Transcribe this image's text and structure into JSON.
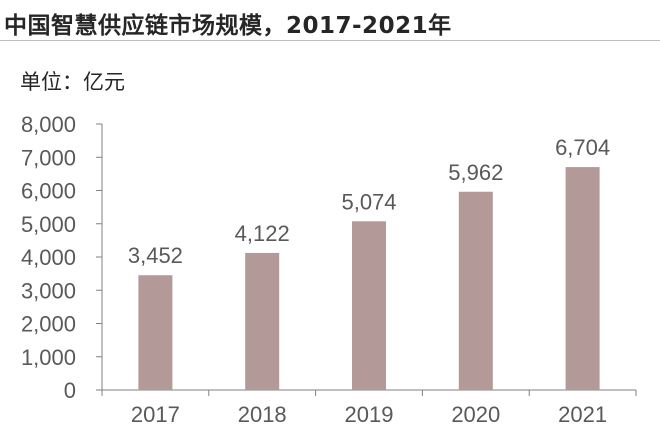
{
  "header": {
    "title": "中国智慧供应链市场规模，2017-2021年",
    "unit": "单位：亿元"
  },
  "colors": {
    "bar": "#b39998",
    "axis": "#808080",
    "text": "#595959"
  },
  "chart_data": {
    "type": "bar",
    "title": "中国智慧供应链市场规模，2017-2021年",
    "ylabel": "单位：亿元",
    "xlabel": "",
    "categories": [
      "2017",
      "2018",
      "2019",
      "2020",
      "2021"
    ],
    "values": [
      3452,
      4122,
      5074,
      5962,
      6704
    ],
    "value_labels": [
      "3,452",
      "4,122",
      "5,074",
      "5,962",
      "6,704"
    ],
    "yticks": [
      0,
      1000,
      2000,
      3000,
      4000,
      5000,
      6000,
      7000,
      8000
    ],
    "ytick_labels": [
      "0",
      "1,000",
      "2,000",
      "3,000",
      "4,000",
      "5,000",
      "6,000",
      "7,000",
      "8,000"
    ],
    "ylim": [
      0,
      8000
    ],
    "grid": false,
    "legend": "none"
  }
}
